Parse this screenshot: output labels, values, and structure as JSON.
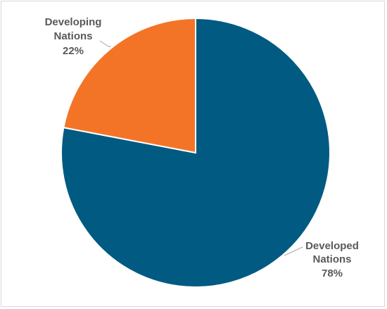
{
  "chart_data": {
    "type": "pie",
    "title": "",
    "series": [
      {
        "name": "",
        "slices": [
          {
            "label": "Developed Nations",
            "value": 78,
            "value_label": "78%",
            "color": "#005a82"
          },
          {
            "label": "Developing Nations",
            "value": 22,
            "value_label": "22%",
            "color": "#f47427"
          }
        ]
      }
    ],
    "start_angle": "12 o'clock",
    "direction": "clockwise",
    "legend": "none",
    "data_labels": "outside with leader lines",
    "colors": {
      "label_text": "#595959",
      "leader_line": "#a6a6a6",
      "border": "#d9d9d9"
    }
  }
}
